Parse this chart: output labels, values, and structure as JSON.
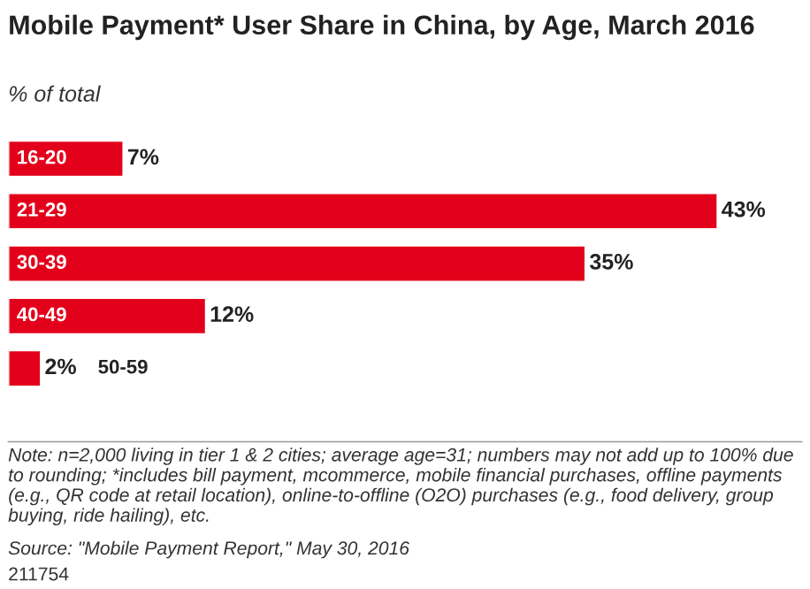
{
  "chart_data": {
    "type": "bar",
    "orientation": "horizontal",
    "title": "Mobile Payment* User Share in China, by Age, March 2016",
    "subtitle": "% of total",
    "categories": [
      "16-20",
      "21-29",
      "30-39",
      "40-49",
      "50-59"
    ],
    "values": [
      7,
      43,
      35,
      12,
      2
    ],
    "value_labels": [
      "7%",
      "43%",
      "35%",
      "12%",
      "2%"
    ],
    "color": "#e3001b",
    "annotations": [
      "Note: n=2,000 living in tier 1 & 2 cities; average age=31; numbers may not add up to 100% due to rounding; *includes bill payment, mcommerce, mobile financial purchases, offline payments (e.g., QR code at retail location), online-to-offline (O2O) purchases (e.g., food delivery, group buying, ride hailing), etc.",
      "Source: \"Mobile Payment Report,\" May 30, 2016",
      "211754"
    ]
  }
}
